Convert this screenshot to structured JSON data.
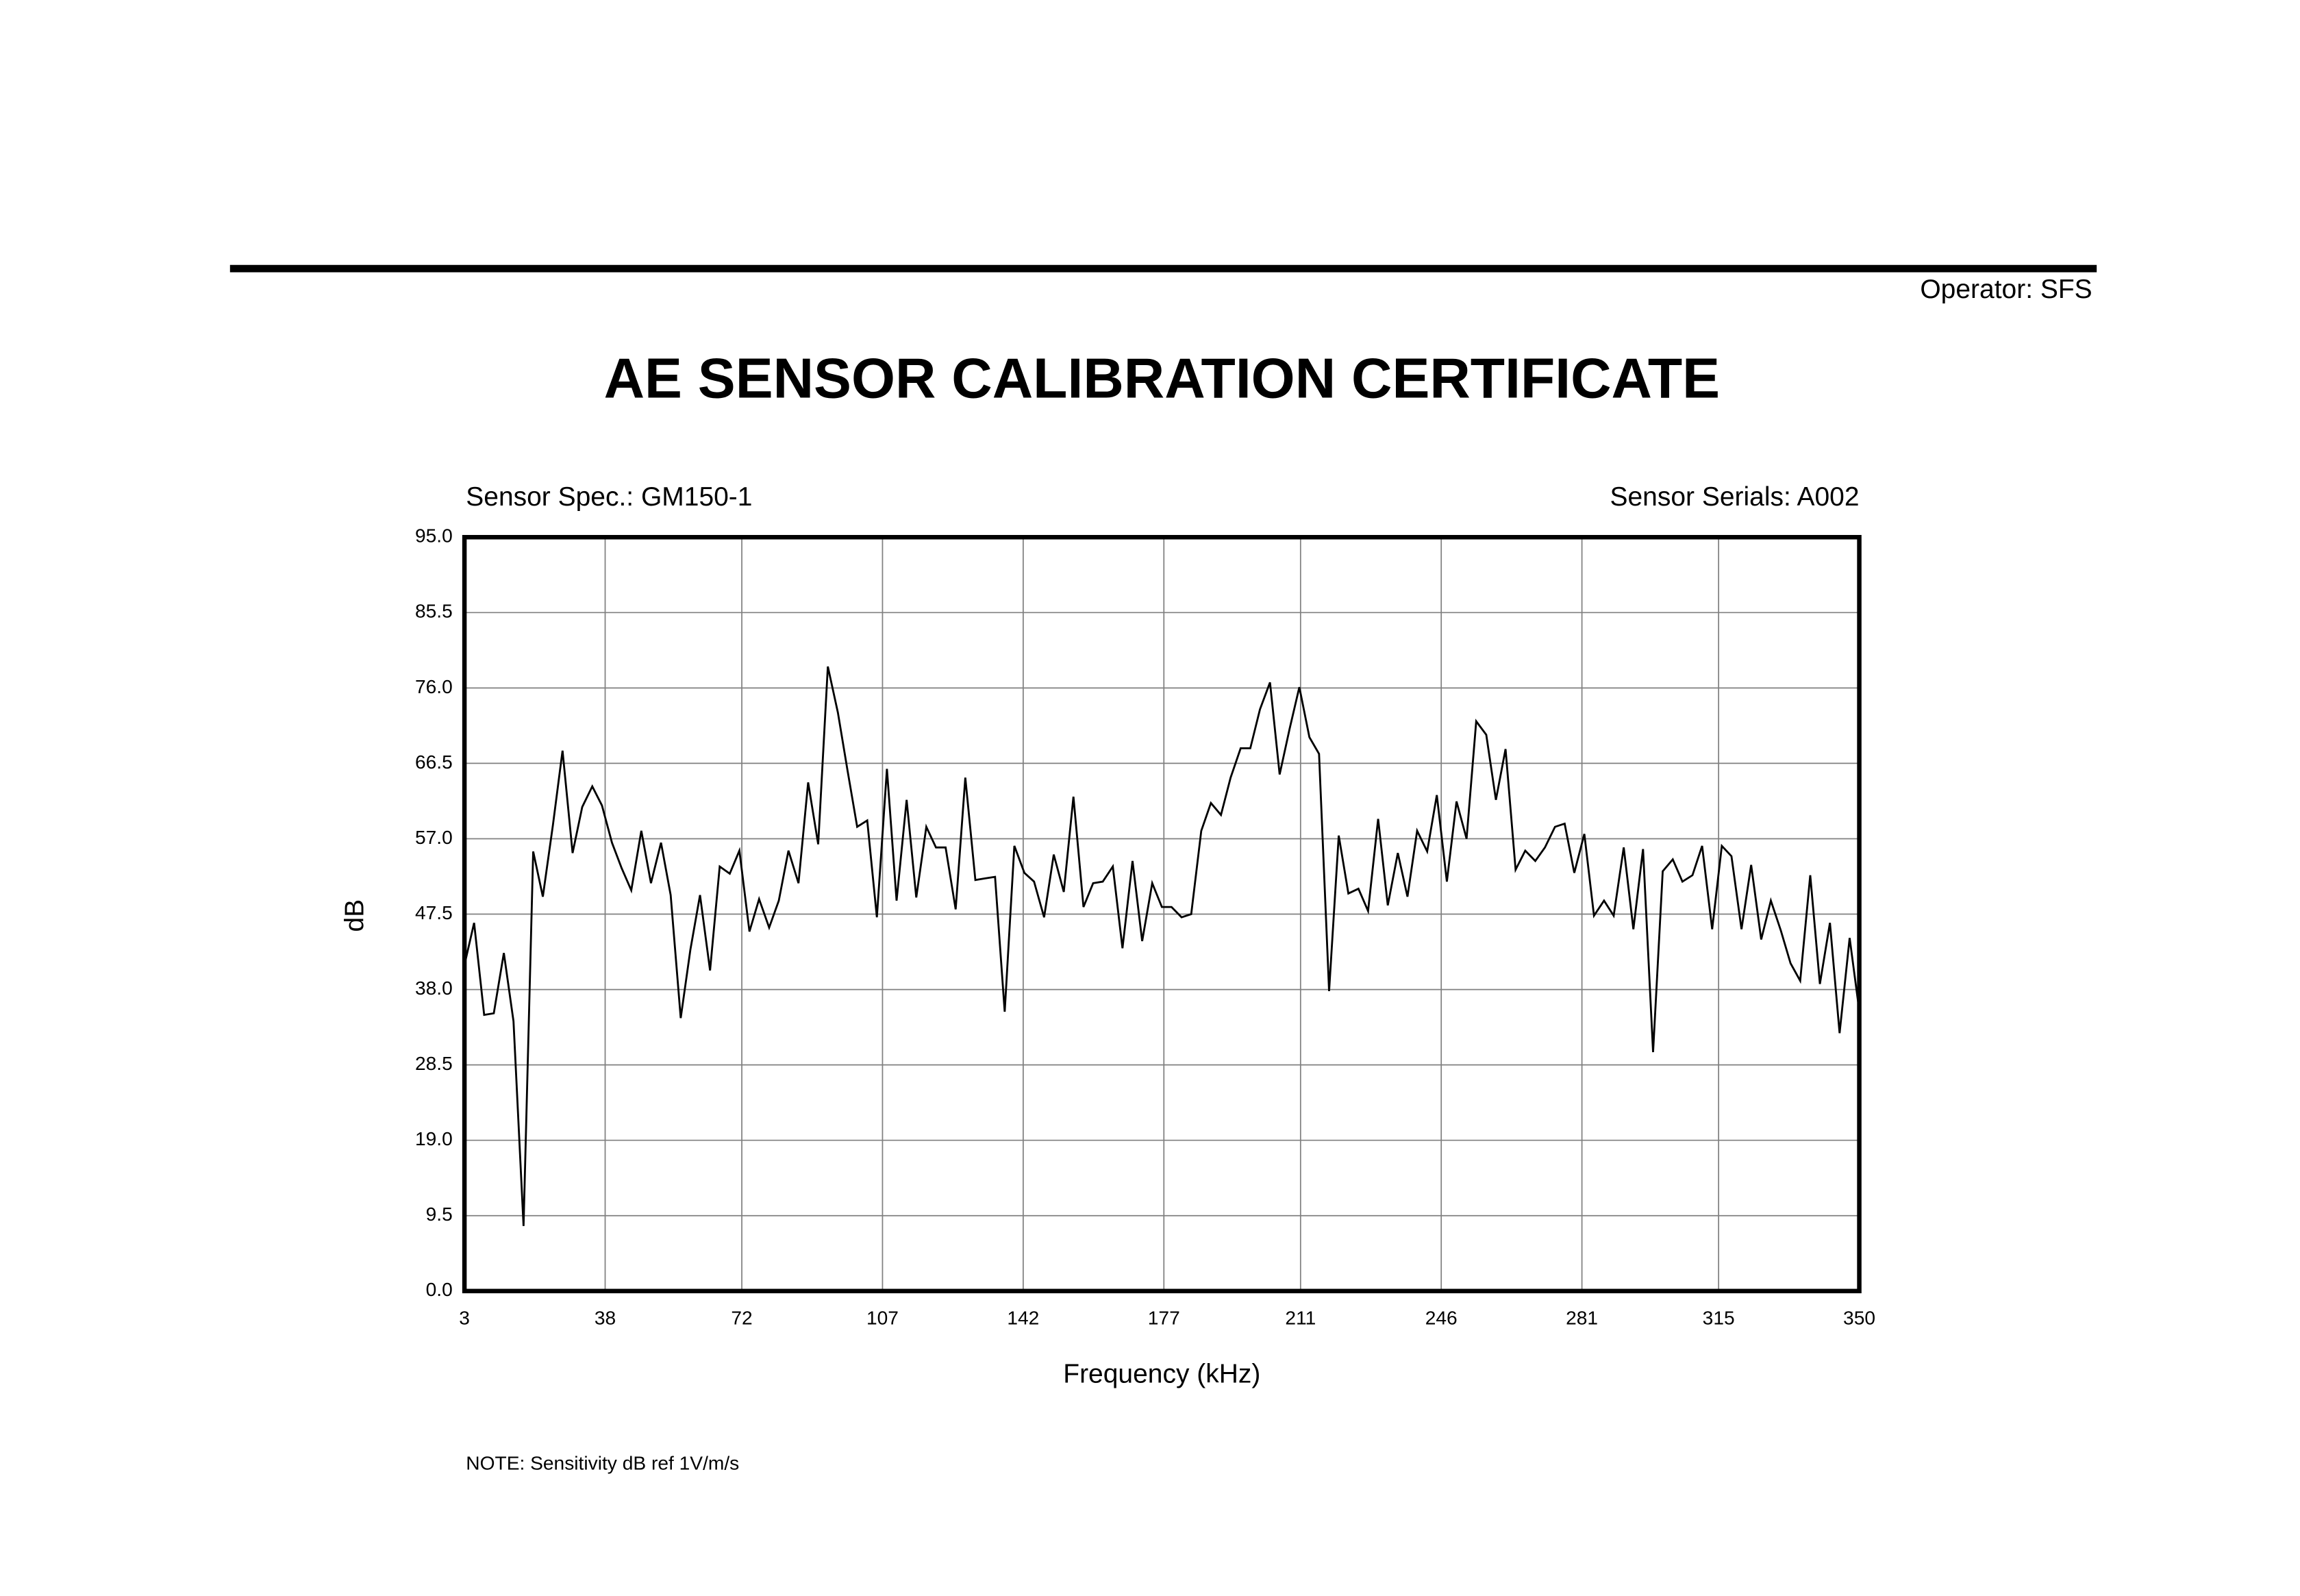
{
  "operator": "Operator: SFS",
  "chart_data": {
    "type": "line",
    "title": "AE SENSOR CALIBRATION CERTIFICATE",
    "sensor_spec": "Sensor Spec.: GM150-1",
    "sensor_serials": "Sensor Serials: A002",
    "x_label": "Frequency (kHz)",
    "y_label": "dB",
    "note": "NOTE:  Sensitivity dB ref 1V/m/s",
    "grid": true,
    "xlim": [
      3,
      350
    ],
    "ylim": [
      0,
      95
    ],
    "xticks": [
      3,
      38,
      72,
      107,
      142,
      177,
      211,
      246,
      281,
      315,
      350
    ],
    "yticks": [
      {
        "value": 0,
        "label": "0.0"
      },
      9.5,
      {
        "value": 19,
        "label": "19.0"
      },
      28.5,
      {
        "value": 38,
        "label": "38.0"
      },
      47.5,
      {
        "value": 57,
        "label": "57.0"
      },
      66.5,
      {
        "value": 76,
        "label": "76.0"
      },
      85.5,
      {
        "value": 95,
        "label": "95.0"
      }
    ],
    "series": [
      {
        "color": "#000000",
        "x": [
          3.0,
          5.4,
          7.9,
          10.3,
          12.8,
          15.2,
          17.7,
          20.1,
          22.5,
          25.0,
          27.4,
          29.9,
          32.3,
          34.8,
          37.2,
          39.7,
          42.1,
          44.5,
          47.0,
          49.4,
          51.9,
          54.3,
          56.8,
          59.2,
          61.6,
          64.1,
          66.5,
          69.0,
          71.4,
          73.9,
          76.3,
          78.8,
          81.2,
          83.6,
          86.1,
          88.5,
          91.0,
          93.4,
          95.9,
          98.3,
          100.7,
          103.2,
          105.6,
          108.1,
          110.5,
          113.0,
          115.4,
          117.9,
          120.3,
          122.7,
          125.2,
          127.6,
          130.1,
          132.5,
          135.0,
          137.4,
          139.8,
          142.3,
          144.7,
          147.2,
          149.6,
          152.1,
          154.5,
          157.0,
          159.4,
          161.8,
          164.3,
          166.7,
          169.2,
          171.6,
          174.1,
          176.5,
          178.9,
          181.4,
          183.8,
          186.3,
          188.7,
          191.2,
          193.6,
          196.1,
          198.5,
          200.9,
          203.4,
          205.8,
          208.3,
          210.7,
          213.2,
          215.6,
          218.1,
          220.5,
          222.9,
          225.4,
          227.8,
          230.3,
          232.7,
          235.2,
          237.6,
          240.0,
          242.5,
          244.9,
          247.4,
          249.8,
          252.3,
          254.7,
          257.2,
          259.6,
          262.0,
          264.5,
          266.9,
          269.4,
          271.8,
          274.3,
          276.7,
          279.1,
          281.6,
          284.0,
          286.5,
          288.9,
          291.4,
          293.8,
          296.2,
          298.7,
          301.1,
          303.6,
          306.0,
          308.5,
          310.9,
          313.4,
          315.8,
          318.2,
          320.7,
          323.1,
          325.6,
          328.0,
          330.5,
          332.9,
          335.3,
          337.8,
          340.2,
          342.7,
          345.1,
          347.6,
          350.0
        ],
        "values": [
          41.1,
          46.4,
          34.8,
          35.0,
          42.6,
          34.0,
          8.2,
          55.4,
          49.7,
          58.7,
          68.1,
          55.2,
          61.0,
          63.6,
          61.2,
          56.5,
          53.3,
          50.5,
          58.0,
          51.4,
          56.5,
          49.9,
          34.4,
          43.0,
          49.9,
          40.4,
          53.5,
          52.6,
          55.5,
          45.3,
          49.4,
          45.8,
          49.2,
          55.5,
          51.4,
          64.1,
          56.3,
          78.7,
          72.9,
          65.6,
          58.5,
          59.3,
          47.1,
          65.8,
          49.2,
          61.9,
          49.6,
          58.5,
          55.9,
          55.9,
          48.1,
          64.7,
          51.8,
          52.0,
          52.2,
          35.2,
          56.1,
          52.7,
          51.6,
          47.1,
          55.0,
          50.3,
          62.3,
          48.4,
          51.4,
          51.6,
          53.5,
          43.2,
          54.2,
          44.1,
          51.4,
          48.4,
          48.4,
          47.1,
          47.5,
          58.0,
          61.5,
          60.0,
          64.7,
          68.4,
          68.4,
          73.3,
          76.7,
          65.1,
          70.9,
          76.1,
          69.8,
          67.7,
          37.8,
          57.4,
          50.1,
          50.7,
          47.9,
          59.5,
          48.6,
          55.2,
          49.7,
          58.0,
          55.4,
          62.5,
          51.6,
          61.7,
          57.0,
          71.8,
          70.1,
          61.9,
          68.3,
          53.1,
          55.5,
          54.2,
          55.9,
          58.5,
          58.9,
          52.7,
          57.6,
          47.3,
          49.2,
          47.3,
          55.9,
          45.6,
          55.7,
          30.1,
          52.9,
          54.4,
          51.6,
          52.4,
          56.1,
          45.6,
          56.1,
          54.8,
          45.6,
          53.7,
          44.3,
          49.2,
          45.4,
          41.3,
          39.1,
          52.4,
          38.7,
          46.4,
          32.5,
          44.5,
          35.3
        ]
      }
    ]
  }
}
